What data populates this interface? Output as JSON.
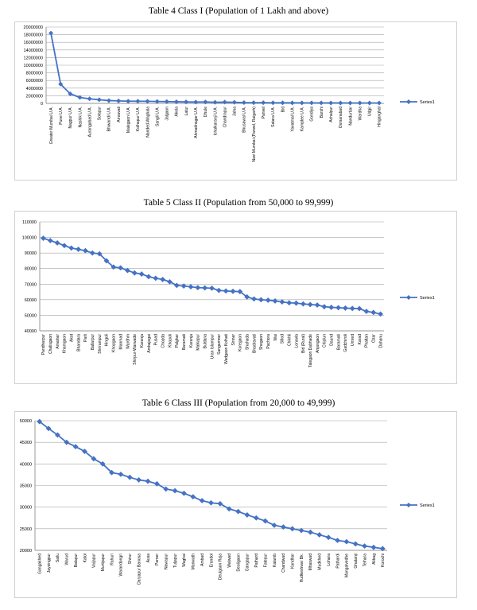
{
  "colors": {
    "series": "#4472C4",
    "grid": "#a6a6a6",
    "frame": "#d0d0d0"
  },
  "chart_data": [
    {
      "type": "line",
      "title": "Table 4 Class I (Population of 1 Lakh and above)",
      "xlabel": "",
      "ylabel": "",
      "ylim": [
        0,
        20000000
      ],
      "yticks": [
        0,
        2000000,
        4000000,
        6000000,
        8000000,
        10000000,
        12000000,
        14000000,
        16000000,
        18000000,
        20000000
      ],
      "grid": "horizontal",
      "legend": "right",
      "categories": [
        "Greater Mumbai U.A.",
        "Pune U.A.",
        "Nagpur U.A.",
        "Nashik U.A.",
        "Aurangabad U.A.",
        "Solapur",
        "Bhiwandi U.A.",
        "Amravati",
        "Malegaon U.A.",
        "Kolhapur U.A.",
        "Nanded-Waghala",
        "Sangli U.A.",
        "Jalgaon",
        "Akola",
        "Latur",
        "Ahmadnagar U.A.",
        "Dhule",
        "Ichalkaranji U.A.",
        "Chandrapur",
        "Jalna",
        "Bhusawal U.A.",
        "Navi Mumbai (Panvel, Raigarh)",
        "Panvel",
        "Satara U.A.",
        "Bid",
        "Yavatmal U.A.",
        "Kamptee U.A.",
        "Gondiya",
        "Barshi",
        "Achalpur",
        "Osmanabad",
        "Nandurbar",
        "Wardha",
        "Udgir",
        "Hinganghat"
      ],
      "series": [
        {
          "name": "Series1",
          "values": [
            18400000,
            5050000,
            2500000,
            1560000,
            1190000,
            951000,
            740000,
            647000,
            576000,
            561000,
            550000,
            502000,
            460000,
            427000,
            382000,
            350000,
            376000,
            288000,
            329000,
            285000,
            201000,
            181000,
            180000,
            150000,
            146000,
            139000,
            130000,
            132000,
            118000,
            112000,
            112000,
            111000,
            106000,
            104000,
            101000
          ]
        }
      ]
    },
    {
      "type": "line",
      "title": "Table 5 Class II (Population from 50,000 to 99,999)",
      "xlabel": "",
      "ylabel": "",
      "ylim": [
        40000,
        110000
      ],
      "yticks": [
        40000,
        50000,
        60000,
        70000,
        80000,
        90000,
        100000,
        110000
      ],
      "grid": "horizontal",
      "legend": "right",
      "categories": [
        "Pandharpur",
        "Chalisgaon",
        "Amalner",
        "Khamgaon",
        "Akot",
        "Bhandara",
        "Parli",
        "Ballarpur",
        "Shrirampur",
        "Hingoli",
        "Khopgaon",
        "Manmad",
        "Wardhm",
        "Shirpur-Warwade",
        "Karanja",
        "Ambajogai",
        "Pusad",
        "Chopda",
        "Khopoli",
        "Palghar",
        "Baramati",
        "Karanja",
        "Malkapur",
        "Buldana",
        "Uran Islampur",
        "Sangamner",
        "Wadgaon Kolhati",
        "Sinnar",
        "Koregaon",
        "Shahada",
        "Bhadravati",
        "Shegaon",
        "Pachora",
        "Wai",
        "Sillod",
        "Chikhli",
        "Lonavla",
        "Bid (Rural)",
        "Talegaon Dabhade",
        "Anjangaon",
        "Chiplun",
        "Daund",
        "Baramati",
        "Gadchiroli",
        "Umred",
        "Karad",
        "Phaltan",
        "Ozar",
        "Dahanu"
      ],
      "series": [
        {
          "name": "Series1",
          "values": [
            99500,
            98000,
            96500,
            94800,
            93200,
            92400,
            91500,
            90000,
            89500,
            85000,
            81000,
            80500,
            78800,
            77200,
            76500,
            74800,
            73800,
            73000,
            71500,
            69200,
            68800,
            68300,
            67800,
            67600,
            67400,
            66000,
            65600,
            65400,
            65200,
            61800,
            60500,
            60000,
            59700,
            59200,
            58600,
            58000,
            57800,
            57300,
            56900,
            56600,
            55500,
            55100,
            54900,
            54600,
            54400,
            54300,
            52500,
            51800,
            50800
          ]
        }
      ]
    },
    {
      "type": "line",
      "title": "Table 6 Class III (Population from 20,000 to 49,999)",
      "xlabel": "",
      "ylabel": "",
      "ylim": [
        20000,
        50000
      ],
      "yticks": [
        20000,
        25000,
        30000,
        35000,
        40000,
        45000,
        50000
      ],
      "grid": "horizontal",
      "legend": "right",
      "categories": [
        "Gangakhed",
        "Jaysingpur",
        "Sailu",
        "Warud",
        "Balapur",
        "Katol",
        "Vaijapur",
        "Murtijapur",
        "Rahuri",
        "Warandongri",
        "Shirur",
        "Daryapur Banosa",
        "Ausa",
        "Parner",
        "Nawapur",
        "Tuljapur",
        "Waghai",
        "Manwath",
        "Ambad",
        "Erandol",
        "Deulgaon Raja",
        "Walwad",
        "Deoligaon",
        "Gangapur",
        "Pathard",
        "Fatepur",
        "Kalamb",
        "Chandwad",
        "Kandhar",
        "Hudkeshwar Bk.",
        "Mhaswad",
        "Mudkhed",
        "Lohara",
        "Pathardi",
        "Mangalvedhe",
        "Ghatanji",
        "Telhara",
        "Alibag",
        "Korochi"
      ],
      "series": [
        {
          "name": "Series1",
          "values": [
            49800,
            48200,
            46700,
            45000,
            44000,
            42900,
            41200,
            40000,
            38000,
            37600,
            36900,
            36300,
            36000,
            35400,
            34200,
            33800,
            33200,
            32400,
            31500,
            31000,
            30800,
            29600,
            29000,
            28200,
            27500,
            26800,
            25800,
            25400,
            25000,
            24600,
            24200,
            23600,
            23000,
            22300,
            22000,
            21500,
            21000,
            20700,
            20400
          ]
        }
      ]
    }
  ]
}
